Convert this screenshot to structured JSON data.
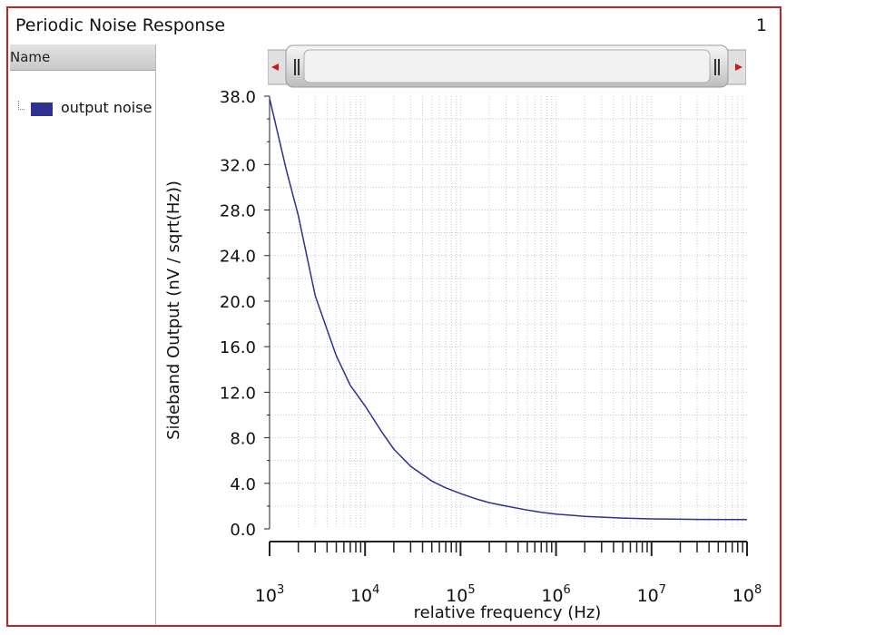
{
  "window": {
    "title": "Periodic Noise Response",
    "page": "1"
  },
  "sidebar": {
    "header": "Name",
    "legend_label": "output noise"
  },
  "colors": {
    "series": "#2e3192",
    "frame": "#c0242a"
  },
  "chart_data": {
    "type": "line",
    "xscale": "log",
    "xlim": [
      1000,
      100000000
    ],
    "ylim": [
      0,
      38
    ],
    "xlabel": "relative frequency (Hz)",
    "ylabel": "Sideband Output (nV / sqrt(Hz))",
    "yticks": [
      "0.0",
      "4.0",
      "8.0",
      "12.0",
      "16.0",
      "20.0",
      "24.0",
      "28.0",
      "32.0",
      "38.0"
    ],
    "ytick_values": [
      0,
      4,
      8,
      12,
      16,
      20,
      24,
      28,
      32,
      38
    ],
    "xticks": [
      {
        "base": "10",
        "exp": "3",
        "value": 1000
      },
      {
        "base": "10",
        "exp": "4",
        "value": 10000
      },
      {
        "base": "10",
        "exp": "5",
        "value": 100000
      },
      {
        "base": "10",
        "exp": "6",
        "value": 1000000
      },
      {
        "base": "10",
        "exp": "7",
        "value": 10000000
      },
      {
        "base": "10",
        "exp": "8",
        "value": 100000000
      }
    ],
    "grid": true,
    "series": [
      {
        "name": "output noise",
        "color": "#2e3192",
        "x": [
          1000,
          1500,
          2000,
          3000,
          4000,
          5000,
          7000,
          10000,
          15000,
          20000,
          30000,
          50000,
          70000,
          100000,
          150000,
          200000,
          300000,
          500000,
          700000,
          1000000,
          2000000,
          5000000,
          10000000,
          30000000,
          100000000
        ],
        "y": [
          37.8,
          31.5,
          27.5,
          20.5,
          17.5,
          15.2,
          12.6,
          10.8,
          8.5,
          7.0,
          5.5,
          4.2,
          3.6,
          3.1,
          2.6,
          2.3,
          2.0,
          1.65,
          1.45,
          1.3,
          1.1,
          0.95,
          0.88,
          0.83,
          0.82
        ]
      }
    ]
  }
}
